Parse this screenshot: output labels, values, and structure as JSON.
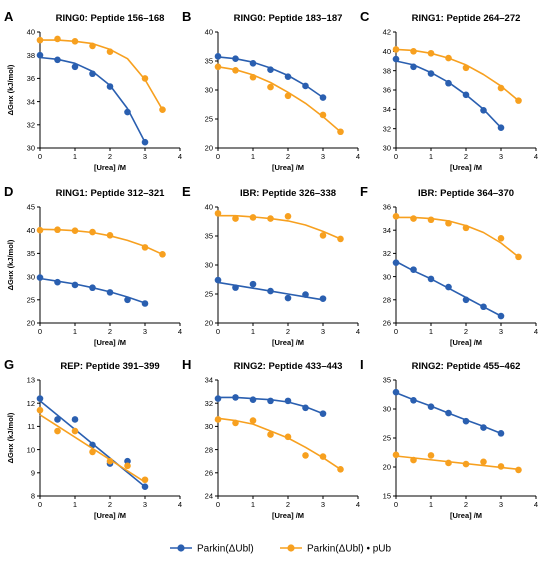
{
  "colors": {
    "blue": "#2a5fb0",
    "orange": "#f7a01f",
    "axis": "#000000"
  },
  "legend": {
    "series": [
      {
        "name": "Parkin(ΔUbl)",
        "color": "#2a5fb0",
        "icon": "line-with-dot"
      },
      {
        "name": "Parkin(ΔUbl) • pUb",
        "color": "#f7a01f",
        "icon": "line-with-dot"
      }
    ],
    "placement": "bottom-center"
  },
  "chart_data": [
    {
      "letter": "A",
      "type": "scatter",
      "title": "RING0: Peptide 156–168",
      "xlabel": "[Urea] /M",
      "ylabel": "ΔGʜx (kJ/mol)",
      "xlim": [
        0,
        4
      ],
      "ylim": [
        30,
        40
      ],
      "xticks": [
        0,
        1,
        2,
        3,
        4
      ],
      "yticks": [
        30,
        32,
        34,
        36,
        38,
        40
      ],
      "series": [
        {
          "name": "Parkin(ΔUbl)",
          "x": [
            0,
            0.5,
            1,
            1.5,
            2,
            2.5,
            3
          ],
          "y": [
            38.0,
            37.6,
            37.0,
            36.4,
            35.3,
            33.1,
            30.5
          ],
          "fit": [
            [
              0,
              37.8
            ],
            [
              0.5,
              37.65
            ],
            [
              1,
              37.3
            ],
            [
              1.5,
              36.6
            ],
            [
              2,
              35.4
            ],
            [
              2.5,
              33.4
            ],
            [
              3,
              30.5
            ]
          ]
        },
        {
          "name": "Parkin(ΔUbl) • pUb",
          "x": [
            0,
            0.5,
            1,
            1.5,
            2,
            3,
            3.5
          ],
          "y": [
            39.3,
            39.4,
            39.2,
            38.8,
            38.3,
            36.0,
            33.3
          ],
          "fit": [
            [
              0,
              39.3
            ],
            [
              0.5,
              39.3
            ],
            [
              1,
              39.2
            ],
            [
              1.5,
              39.0
            ],
            [
              2,
              38.5
            ],
            [
              2.5,
              37.7
            ],
            [
              3,
              35.9
            ],
            [
              3.5,
              33.3
            ]
          ]
        }
      ]
    },
    {
      "letter": "B",
      "type": "scatter",
      "title": "RING0: Peptide 183–187",
      "xlabel": "[Urea] /M",
      "ylabel": "",
      "xlim": [
        0,
        4
      ],
      "ylim": [
        20,
        40
      ],
      "xticks": [
        0,
        1,
        2,
        3,
        4
      ],
      "yticks": [
        20,
        25,
        30,
        35,
        40
      ],
      "series": [
        {
          "name": "Parkin(ΔUbl)",
          "x": [
            0,
            0.5,
            1,
            1.5,
            2,
            2.5,
            3
          ],
          "y": [
            35.8,
            35.4,
            34.6,
            33.5,
            32.3,
            30.7,
            28.7
          ],
          "fit": [
            [
              0,
              35.7
            ],
            [
              0.5,
              35.4
            ],
            [
              1,
              34.8
            ],
            [
              1.5,
              33.8
            ],
            [
              2,
              32.5
            ],
            [
              2.5,
              30.8
            ],
            [
              3,
              28.7
            ]
          ]
        },
        {
          "name": "Parkin(ΔUbl) • pUb",
          "x": [
            0,
            0.5,
            1,
            1.5,
            2,
            3,
            3.5
          ],
          "y": [
            34.0,
            33.4,
            32.2,
            30.5,
            29.0,
            25.7,
            22.8
          ],
          "fit": [
            [
              0,
              34.0
            ],
            [
              0.5,
              33.5
            ],
            [
              1,
              32.6
            ],
            [
              1.5,
              31.3
            ],
            [
              2,
              29.6
            ],
            [
              2.5,
              27.7
            ],
            [
              3,
              25.4
            ],
            [
              3.5,
              22.8
            ]
          ]
        }
      ]
    },
    {
      "letter": "C",
      "type": "scatter",
      "title": "RING1: Peptide 264–272",
      "xlabel": "[Urea] /M",
      "ylabel": "",
      "xlim": [
        0,
        4
      ],
      "ylim": [
        30,
        42
      ],
      "xticks": [
        0,
        1,
        2,
        3,
        4
      ],
      "yticks": [
        30,
        32,
        34,
        36,
        38,
        40,
        42
      ],
      "series": [
        {
          "name": "Parkin(ΔUbl)",
          "x": [
            0,
            0.5,
            1,
            1.5,
            2,
            2.5,
            3
          ],
          "y": [
            39.2,
            38.4,
            37.7,
            36.7,
            35.5,
            33.9,
            32.1
          ],
          "fit": [
            [
              0,
              39.0
            ],
            [
              0.5,
              38.6
            ],
            [
              1,
              37.8
            ],
            [
              1.5,
              36.8
            ],
            [
              2,
              35.5
            ],
            [
              2.5,
              34.0
            ],
            [
              3,
              32.1
            ]
          ]
        },
        {
          "name": "Parkin(ΔUbl) • pUb",
          "x": [
            0,
            0.5,
            1,
            1.5,
            2,
            3,
            3.5
          ],
          "y": [
            40.2,
            40.0,
            39.8,
            39.3,
            38.3,
            36.2,
            34.9
          ],
          "fit": [
            [
              0,
              40.2
            ],
            [
              0.5,
              40.1
            ],
            [
              1,
              39.8
            ],
            [
              1.5,
              39.3
            ],
            [
              2,
              38.6
            ],
            [
              2.5,
              37.6
            ],
            [
              3,
              36.4
            ],
            [
              3.5,
              34.9
            ]
          ]
        }
      ]
    },
    {
      "letter": "D",
      "type": "scatter",
      "title": "RING1: Peptide 312–321",
      "xlabel": "[Urea] /M",
      "ylabel": "ΔGʜx (kJ/mol)",
      "xlim": [
        0,
        4
      ],
      "ylim": [
        20,
        45
      ],
      "xticks": [
        0,
        1,
        2,
        3,
        4
      ],
      "yticks": [
        20,
        25,
        30,
        35,
        40,
        45
      ],
      "series": [
        {
          "name": "Parkin(ΔUbl)",
          "x": [
            0,
            0.5,
            1,
            1.5,
            2,
            2.5,
            3
          ],
          "y": [
            29.8,
            28.8,
            28.2,
            27.6,
            26.6,
            25.0,
            24.2
          ],
          "fit": [
            [
              0,
              29.6
            ],
            [
              0.5,
              29.0
            ],
            [
              1,
              28.4
            ],
            [
              1.5,
              27.6
            ],
            [
              2,
              26.7
            ],
            [
              2.5,
              25.6
            ],
            [
              3,
              24.3
            ]
          ]
        },
        {
          "name": "Parkin(ΔUbl) • pUb",
          "x": [
            0,
            0.5,
            1,
            1.5,
            2,
            3,
            3.5
          ],
          "y": [
            40.0,
            40.1,
            39.9,
            39.6,
            38.9,
            36.3,
            34.8
          ],
          "fit": [
            [
              0,
              40.2
            ],
            [
              0.5,
              40.1
            ],
            [
              1,
              39.9
            ],
            [
              1.5,
              39.5
            ],
            [
              2,
              38.8
            ],
            [
              2.5,
              37.8
            ],
            [
              3,
              36.5
            ],
            [
              3.5,
              34.8
            ]
          ]
        }
      ]
    },
    {
      "letter": "E",
      "type": "scatter",
      "title": "IBR: Peptide 326–338",
      "xlabel": "[Urea] /M",
      "ylabel": "",
      "xlim": [
        0,
        4
      ],
      "ylim": [
        20,
        40
      ],
      "xticks": [
        0,
        1,
        2,
        3,
        4
      ],
      "yticks": [
        20,
        25,
        30,
        35,
        40
      ],
      "series": [
        {
          "name": "Parkin(ΔUbl)",
          "x": [
            0,
            0.5,
            1,
            1.5,
            2,
            2.5,
            3
          ],
          "y": [
            27.4,
            26.1,
            26.7,
            25.5,
            24.3,
            24.9,
            24.2
          ],
          "fit": [
            [
              0,
              27.0
            ],
            [
              0.5,
              26.5
            ],
            [
              1,
              26.0
            ],
            [
              1.5,
              25.5
            ],
            [
              2,
              25.0
            ],
            [
              2.5,
              24.5
            ],
            [
              3,
              24.0
            ]
          ]
        },
        {
          "name": "Parkin(ΔUbl) • pUb",
          "x": [
            0,
            0.5,
            1,
            1.5,
            2,
            3,
            3.5
          ],
          "y": [
            38.9,
            38.0,
            38.2,
            38.0,
            38.4,
            35.1,
            34.5
          ],
          "fit": [
            [
              0,
              38.5
            ],
            [
              0.5,
              38.5
            ],
            [
              1,
              38.3
            ],
            [
              1.5,
              38.0
            ],
            [
              2,
              37.6
            ],
            [
              2.5,
              36.9
            ],
            [
              3,
              35.8
            ],
            [
              3.5,
              34.5
            ]
          ]
        }
      ]
    },
    {
      "letter": "F",
      "type": "scatter",
      "title": "IBR: Peptide 364–370",
      "xlabel": "[Urea] /M",
      "ylabel": "",
      "xlim": [
        0,
        4
      ],
      "ylim": [
        26,
        36
      ],
      "xticks": [
        0,
        1,
        2,
        3,
        4
      ],
      "yticks": [
        26,
        28,
        30,
        32,
        34,
        36
      ],
      "series": [
        {
          "name": "Parkin(ΔUbl)",
          "x": [
            0,
            0.5,
            1,
            1.5,
            2,
            2.5,
            3
          ],
          "y": [
            31.2,
            30.6,
            29.8,
            29.1,
            28.0,
            27.4,
            26.6
          ],
          "fit": [
            [
              0,
              31.3
            ],
            [
              0.5,
              30.5
            ],
            [
              1,
              29.8
            ],
            [
              1.5,
              29.0
            ],
            [
              2,
              28.2
            ],
            [
              2.5,
              27.4
            ],
            [
              3,
              26.6
            ]
          ]
        },
        {
          "name": "Parkin(ΔUbl) • pUb",
          "x": [
            0,
            0.5,
            1,
            1.5,
            2,
            3,
            3.5
          ],
          "y": [
            35.2,
            35.0,
            34.9,
            34.6,
            34.2,
            33.3,
            31.7
          ],
          "fit": [
            [
              0,
              35.1
            ],
            [
              0.5,
              35.1
            ],
            [
              1,
              35.0
            ],
            [
              1.5,
              34.8
            ],
            [
              2,
              34.4
            ],
            [
              2.5,
              33.8
            ],
            [
              3,
              32.9
            ],
            [
              3.5,
              31.7
            ]
          ]
        }
      ]
    },
    {
      "letter": "G",
      "type": "scatter",
      "title": "REP: Peptide 391–399",
      "xlabel": "[Urea] /M",
      "ylabel": "ΔGʜx (kJ/mol)",
      "xlim": [
        0,
        4
      ],
      "ylim": [
        8,
        13
      ],
      "xticks": [
        0,
        1,
        2,
        3,
        4
      ],
      "yticks": [
        8,
        9,
        10,
        11,
        12,
        13
      ],
      "series": [
        {
          "name": "Parkin(ΔUbl)",
          "x": [
            0,
            0.5,
            1,
            1.5,
            2,
            2.5,
            3
          ],
          "y": [
            12.2,
            11.3,
            11.3,
            10.2,
            9.4,
            9.5,
            8.4
          ],
          "fit": [
            [
              0,
              12.1
            ],
            [
              3,
              8.4
            ]
          ]
        },
        {
          "name": "Parkin(ΔUbl) • pUb",
          "x": [
            0,
            0.5,
            1,
            1.5,
            2,
            2.5,
            3
          ],
          "y": [
            11.7,
            10.8,
            10.8,
            9.9,
            9.5,
            9.3,
            8.7
          ],
          "fit": [
            [
              0,
              11.5
            ],
            [
              3,
              8.6
            ]
          ]
        }
      ]
    },
    {
      "letter": "H",
      "type": "scatter",
      "title": "RING2: Peptide 433–443",
      "xlabel": "[Urea] /M",
      "ylabel": "",
      "xlim": [
        0,
        4
      ],
      "ylim": [
        24,
        34
      ],
      "xticks": [
        0,
        1,
        2,
        3,
        4
      ],
      "yticks": [
        24,
        26,
        28,
        30,
        32,
        34
      ],
      "series": [
        {
          "name": "Parkin(ΔUbl)",
          "x": [
            0,
            0.5,
            1,
            1.5,
            2,
            2.5,
            3
          ],
          "y": [
            32.4,
            32.5,
            32.3,
            32.2,
            32.2,
            31.6,
            31.1
          ],
          "fit": [
            [
              0,
              32.5
            ],
            [
              0.5,
              32.5
            ],
            [
              1,
              32.4
            ],
            [
              1.5,
              32.3
            ],
            [
              2,
              32.1
            ],
            [
              2.5,
              31.7
            ],
            [
              3,
              31.1
            ]
          ]
        },
        {
          "name": "Parkin(ΔUbl) • pUb",
          "x": [
            0,
            0.5,
            1,
            1.5,
            2,
            2.5,
            3,
            3.5
          ],
          "y": [
            30.6,
            30.3,
            30.5,
            29.3,
            29.1,
            27.5,
            27.4,
            26.3
          ],
          "fit": [
            [
              0,
              30.7
            ],
            [
              0.5,
              30.5
            ],
            [
              1,
              30.2
            ],
            [
              1.5,
              29.6
            ],
            [
              2,
              29.0
            ],
            [
              2.5,
              28.2
            ],
            [
              3,
              27.3
            ],
            [
              3.5,
              26.3
            ]
          ]
        }
      ]
    },
    {
      "letter": "I",
      "type": "scatter",
      "title": "RING2: Peptide 455–462",
      "xlabel": "[Urea] /M",
      "ylabel": "",
      "xlim": [
        0,
        4
      ],
      "ylim": [
        15,
        35
      ],
      "xticks": [
        0,
        1,
        2,
        3,
        4
      ],
      "yticks": [
        15,
        20,
        25,
        30,
        35
      ],
      "series": [
        {
          "name": "Parkin(ΔUbl)",
          "x": [
            0,
            0.5,
            1,
            1.5,
            2,
            2.5,
            3
          ],
          "y": [
            32.9,
            31.5,
            30.4,
            29.3,
            27.9,
            26.8,
            25.8
          ],
          "fit": [
            [
              0,
              32.8
            ],
            [
              0.5,
              31.6
            ],
            [
              1,
              30.5
            ],
            [
              1.5,
              29.3
            ],
            [
              2,
              28.1
            ],
            [
              2.5,
              27.0
            ],
            [
              3,
              25.8
            ]
          ]
        },
        {
          "name": "Parkin(ΔUbl) • pUb",
          "x": [
            0,
            0.5,
            1,
            1.5,
            2,
            2.5,
            3,
            3.5
          ],
          "y": [
            22.1,
            21.2,
            22.0,
            20.7,
            20.5,
            20.9,
            20.1,
            19.5
          ],
          "fit": [
            [
              0,
              21.9
            ],
            [
              3.5,
              19.6
            ]
          ]
        }
      ]
    }
  ]
}
